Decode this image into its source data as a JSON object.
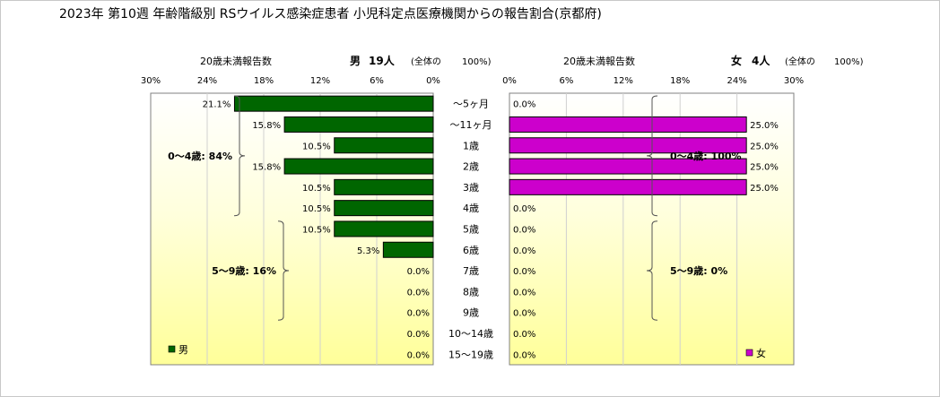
{
  "chart_data": {
    "type": "bar",
    "title": "2023年 第10週 年齢階級別 RSウイルス感染症患者 小児科定点医療機関からの報告割合(京都府)",
    "categories": [
      "〜5ヶ月",
      "〜11ヶ月",
      "1歳",
      "2歳",
      "3歳",
      "4歳",
      "5歳",
      "6歳",
      "7歳",
      "8歳",
      "9歳",
      "10〜14歳",
      "15〜19歳"
    ],
    "xlim": [
      0,
      30
    ],
    "x_ticks": [
      "30%",
      "24%",
      "18%",
      "12%",
      "6%",
      "0%"
    ],
    "x_ticks_right": [
      "0%",
      "6%",
      "12%",
      "18%",
      "24%",
      "30%"
    ],
    "grid": true,
    "series": [
      {
        "name": "男",
        "color": "#006600",
        "values": [
          21.1,
          15.8,
          10.5,
          15.8,
          10.5,
          10.5,
          10.5,
          5.3,
          0.0,
          0.0,
          0.0,
          0.0,
          0.0
        ],
        "labels": [
          "21.1%",
          "15.8%",
          "10.5%",
          "15.8%",
          "10.5%",
          "10.5%",
          "10.5%",
          "5.3%",
          "0.0%",
          "0.0%",
          "0.0%",
          "0.0%",
          "0.0%"
        ],
        "header": {
          "sub": "20歳未満報告数",
          "name": "男",
          "count": "19人",
          "total": "(全体の",
          "total_pct": "100%)"
        },
        "groups": [
          {
            "label": "0〜4歳: 84%",
            "from": 0,
            "to": 5
          },
          {
            "label": "5〜9歳: 16%",
            "from": 6,
            "to": 10
          }
        ]
      },
      {
        "name": "女",
        "color": "#cc00cc",
        "values": [
          0.0,
          25.0,
          25.0,
          25.0,
          25.0,
          0.0,
          0.0,
          0.0,
          0.0,
          0.0,
          0.0,
          0.0,
          0.0
        ],
        "labels": [
          "0.0%",
          "25.0%",
          "25.0%",
          "25.0%",
          "25.0%",
          "0.0%",
          "0.0%",
          "0.0%",
          "0.0%",
          "0.0%",
          "0.0%",
          "0.0%",
          "0.0%"
        ],
        "header": {
          "sub": "20歳未満報告数",
          "name": "女",
          "count": "4人",
          "total": "(全体の",
          "total_pct": "100%)"
        },
        "groups": [
          {
            "label": "0〜4歳: 100%",
            "from": 0,
            "to": 5
          },
          {
            "label": "5〜9歳: 0%",
            "from": 6,
            "to": 10
          }
        ]
      }
    ]
  }
}
